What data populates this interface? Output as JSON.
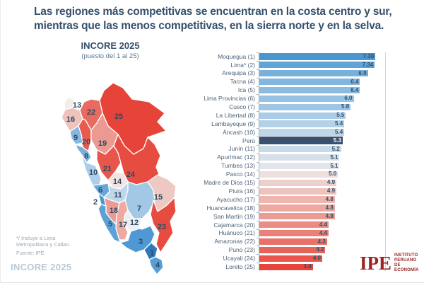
{
  "title": "Las regiones más competitivas se encuentran en la costa centro y sur, mientras que las menos competitivas, en la sierra norte y en la selva.",
  "map": {
    "heading": "INCORE 2025",
    "subheading": "(puesto del 1 al 25)",
    "regions": [
      {
        "rank": "1",
        "name": "Moquegua",
        "color": "#2f78ba"
      },
      {
        "rank": "2",
        "name": "Lima",
        "color": "#4a94d0"
      },
      {
        "rank": "3",
        "name": "Arequipa",
        "color": "#4f98d3"
      },
      {
        "rank": "4",
        "name": "Tacna",
        "color": "#579ed5"
      },
      {
        "rank": "5",
        "name": "Ica",
        "color": "#5da2d6"
      },
      {
        "rank": "6",
        "name": "Lima Provincias",
        "color": "#64a7d8"
      },
      {
        "rank": "7",
        "name": "Cusco",
        "color": "#a3c8e5"
      },
      {
        "rank": "8",
        "name": "La Libertad",
        "color": "#7ab0dc"
      },
      {
        "rank": "9",
        "name": "Lambayeque",
        "color": "#85b8df"
      },
      {
        "rank": "10",
        "name": "Áncash",
        "color": "#aecde7"
      },
      {
        "rank": "11",
        "name": "Junín",
        "color": "#c0d7e9"
      },
      {
        "rank": "12",
        "name": "Apurímac",
        "color": "#eceff2"
      },
      {
        "rank": "13",
        "name": "Tumbes",
        "color": "#f0edea"
      },
      {
        "rank": "14",
        "name": "Pasco",
        "color": "#f3e4e1"
      },
      {
        "rank": "15",
        "name": "Madre de Dios",
        "color": "#eec8c2"
      },
      {
        "rank": "16",
        "name": "Piura",
        "color": "#eec3bc"
      },
      {
        "rank": "17",
        "name": "Ayacucho",
        "color": "#edaaa1"
      },
      {
        "rank": "18",
        "name": "Huancavelica",
        "color": "#ec9b92"
      },
      {
        "rank": "19",
        "name": "San Martín",
        "color": "#ec9a91"
      },
      {
        "rank": "20",
        "name": "Cajamarca",
        "color": "#e85c50"
      },
      {
        "rank": "21",
        "name": "Huánuco",
        "color": "#e8564b"
      },
      {
        "rank": "22",
        "name": "Amazonas",
        "color": "#e96b60"
      },
      {
        "rank": "23",
        "name": "Puno",
        "color": "#e74c41"
      },
      {
        "rank": "24",
        "name": "Ucayali",
        "color": "#e74c41"
      },
      {
        "rank": "25",
        "name": "Loreto",
        "color": "#e64438"
      }
    ]
  },
  "chart_data": {
    "type": "bar",
    "orientation": "horizontal",
    "title": "INCORE 2025",
    "subtitle": "(puesto del 1 al 25)",
    "xlim": [
      0,
      8
    ],
    "grid": false,
    "legend": "none",
    "categories": [
      "Moquegua (1)",
      "Lima* (2)",
      "Arequipa (3)",
      "Tacna (4)",
      "Ica (5)",
      "Lima Provincias (6)",
      "Cusco (7)",
      "La Libertad (8)",
      "Lambayeque (9)",
      "Áncash (10)",
      "Perú",
      "Junín (11)",
      "Apurímac (12)",
      "Tumbes (13)",
      "Pasco (14)",
      "Madre de Dios (15)",
      "Piura (16)",
      "Ayacucho (17)",
      "Huancavelica (18)",
      "San Martín (19)",
      "Cajamarca (20)",
      "Huánuco (21)",
      "Amazonas (22)",
      "Puno (23)",
      "Ucayali (24)",
      "Loreto (25)"
    ],
    "values": [
      7.38,
      7.34,
      6.9,
      6.4,
      6.4,
      6.0,
      5.8,
      5.5,
      5.4,
      5.4,
      5.3,
      5.2,
      5.1,
      5.1,
      5.0,
      4.9,
      4.9,
      4.8,
      4.8,
      4.8,
      4.4,
      4.4,
      4.3,
      4.2,
      4.0,
      3.4
    ],
    "value_labels": [
      "7.38",
      "7.34",
      "6.9",
      "6.4",
      "6.4",
      "6.0",
      "5.8",
      "5.5",
      "5.4",
      "5.4",
      "5.3",
      "5.2",
      "5.1",
      "5.1",
      "5.0",
      "4.9",
      "4.9",
      "4.8",
      "4.8",
      "4.8",
      "4.4",
      "4.4",
      "4.3",
      "4.2",
      "4.0",
      "3.4"
    ],
    "bar_colors": [
      "#4a96d1",
      "#5ea4d7",
      "#78b0dc",
      "#82b6de",
      "#8bbbe0",
      "#96c1e3",
      "#9fc6e4",
      "#aacce6",
      "#b4d1e8",
      "#bed6e9",
      "#3a506c",
      "#c9dae9",
      "#d6e0ea",
      "#e2e6ea",
      "#ecdfdd",
      "#edd0cb",
      "#eec3bd",
      "#eeb6af",
      "#eda9a1",
      "#ec9b92",
      "#eb8d84",
      "#ea8076",
      "#e97167",
      "#e8635a",
      "#e7554b",
      "#e5453b"
    ],
    "highlight_index": 10,
    "highlight_label": "Perú"
  },
  "footnote": "*/ Incluye a Lima\nMetropolitana y Callao.",
  "source": "Fuente: IPE.",
  "watermark": "INCORE 2025",
  "logo": {
    "abbr": "IPE",
    "lines": "INSTITUTO\nPERUANO\nDE ECONOMÍA"
  }
}
